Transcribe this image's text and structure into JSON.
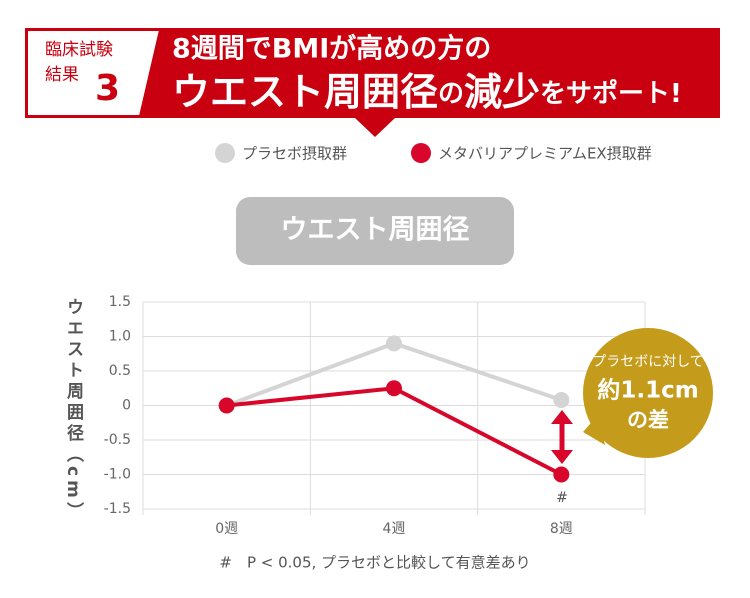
{
  "chart_data": {
    "type": "line",
    "header": {
      "badge": [
        "臨床試験",
        "結果"
      ],
      "badge_number": "3",
      "title_line1": "8週間でBMIが高めの方の",
      "title_line2": [
        "ウエスト周囲径",
        "の",
        "減少",
        "をサポート!"
      ]
    },
    "title": "ウエスト周囲径",
    "y_label": "ウエスト周囲径（cm）",
    "categories": [
      "0週",
      "4週",
      "8週"
    ],
    "series": [
      {
        "name": "プラセボ摂取群",
        "color": "#d4d4d4",
        "values": [
          0,
          0.9,
          0.08
        ]
      },
      {
        "name": "メタバリアプレミアムEX摂取群",
        "color": "#d7062a",
        "values": [
          0,
          0.25,
          -1.0
        ]
      }
    ],
    "ylim": [
      -1.5,
      1.5
    ],
    "yticks": [
      -1.5,
      {
        "value": -1,
        "label": "-1.0"
      },
      -0.5,
      0,
      0.5,
      {
        "value": 1,
        "label": "1.0"
      },
      1.5
    ],
    "grid": true,
    "significance_mark": "#",
    "callout": [
      "プラセボに対して",
      "約1.1cm",
      "の差"
    ],
    "footnote": "#　P < 0.05, プラセボと比較して有意差あり"
  }
}
